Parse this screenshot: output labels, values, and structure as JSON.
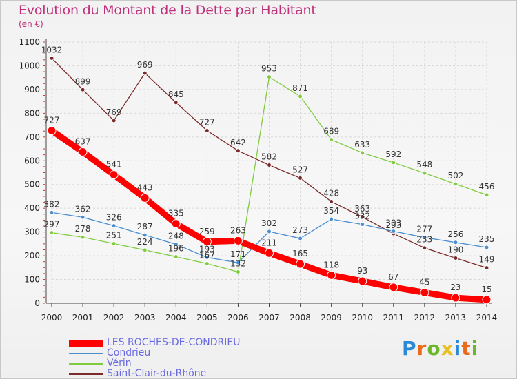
{
  "title": "Evolution du Montant de la Dette par Habitant",
  "subtitle": "(en €)",
  "logo": "Proxiti",
  "chart_data": {
    "type": "line",
    "title": "Evolution du Montant de la Dette par Habitant",
    "subtitle": "(en €)",
    "x": [
      "2000",
      "2001",
      "2002",
      "2003",
      "2004",
      "2005",
      "2006",
      "2007",
      "2008",
      "2009",
      "2010",
      "2011",
      "2012",
      "2013",
      "2014"
    ],
    "yticks": [
      0,
      100,
      200,
      300,
      400,
      500,
      600,
      700,
      800,
      900,
      1000,
      1100
    ],
    "ylim": [
      0,
      1100
    ],
    "grid": true,
    "legend_position": "bottom-left",
    "series": [
      {
        "name": "Saint-Clair-du-Rhône",
        "color": "#7a2a2a",
        "values": [
          1032,
          899,
          769,
          969,
          845,
          727,
          642,
          582,
          527,
          428,
          363,
          293,
          233,
          190,
          149
        ],
        "labels": [
          "1032",
          "899",
          "769",
          "969",
          "845",
          "727",
          "642",
          "582",
          "527",
          "428",
          "363",
          "293",
          "233",
          "190",
          "149"
        ]
      },
      {
        "name": "Vérin",
        "color": "#80cc40",
        "values": [
          297,
          278,
          251,
          224,
          196,
          167,
          132,
          953,
          871,
          689,
          633,
          592,
          548,
          502,
          456
        ],
        "labels": [
          "297",
          "278",
          "251",
          "224",
          "196",
          "167",
          "132",
          "953",
          "871",
          "689",
          "633",
          "592",
          "548",
          "502",
          "456"
        ]
      },
      {
        "name": "Condrieu",
        "color": "#4a8ed0",
        "values": [
          382,
          362,
          326,
          287,
          248,
          193,
          171,
          302,
          273,
          354,
          332,
          303,
          277,
          256,
          235
        ],
        "labels": [
          "382",
          "362",
          "326",
          "287",
          "248",
          "193",
          "171",
          "302",
          "273",
          "354",
          "332",
          "303",
          "277",
          "256",
          "235"
        ]
      },
      {
        "name": "LES ROCHES-DE-CONDRIEU",
        "color": "#ff0000",
        "values": [
          727,
          637,
          541,
          443,
          335,
          259,
          263,
          211,
          165,
          118,
          93,
          67,
          45,
          23,
          15
        ],
        "labels": [
          "727",
          "637",
          "541",
          "443",
          "335",
          "259",
          "263",
          "211",
          "165",
          "118",
          "93",
          "67",
          "45",
          "23",
          "15"
        ]
      }
    ]
  }
}
